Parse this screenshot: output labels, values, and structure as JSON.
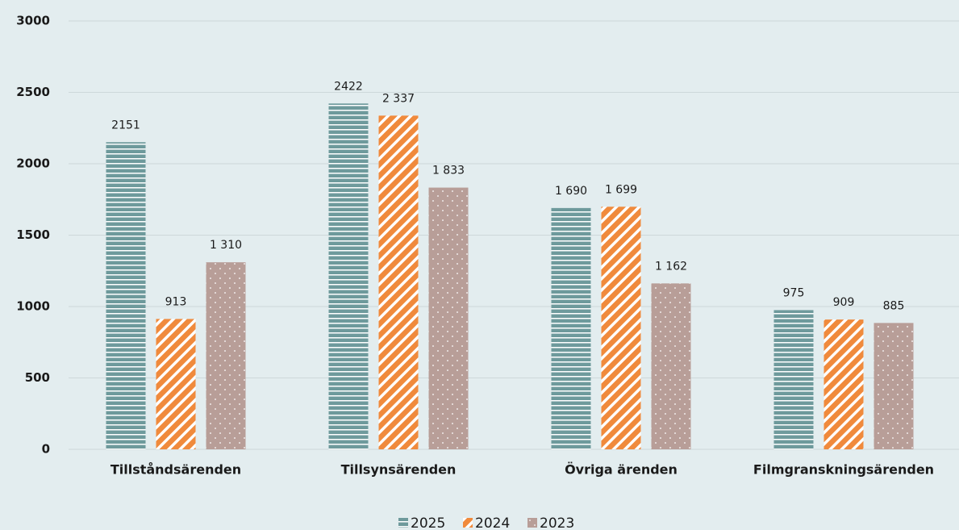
{
  "chart_data": {
    "type": "bar",
    "categories": [
      "Tillståndsärenden",
      "Tillsynsärenden",
      "Övriga ärenden",
      "Filmgranskningsärenden"
    ],
    "series": [
      {
        "name": "2025",
        "color": "#6e9a9c",
        "values": [
          2151,
          2422,
          1690,
          975
        ],
        "value_labels": [
          "2151",
          "2422",
          "1 690",
          "975"
        ]
      },
      {
        "name": "2024",
        "color": "#f08a3c",
        "values": [
          913,
          2337,
          1699,
          909
        ],
        "value_labels": [
          "913",
          "2 337",
          "1 699",
          "909"
        ]
      },
      {
        "name": "2023",
        "color": "#b89e98",
        "values": [
          1310,
          1833,
          1162,
          885
        ],
        "value_labels": [
          "1 310",
          "1 833",
          "1 162",
          "885"
        ]
      }
    ],
    "ylim": [
      0,
      3000
    ],
    "yticks": [
      0,
      500,
      1000,
      1500,
      2000,
      2500,
      3000
    ],
    "grid": true,
    "legend": "bottom"
  }
}
